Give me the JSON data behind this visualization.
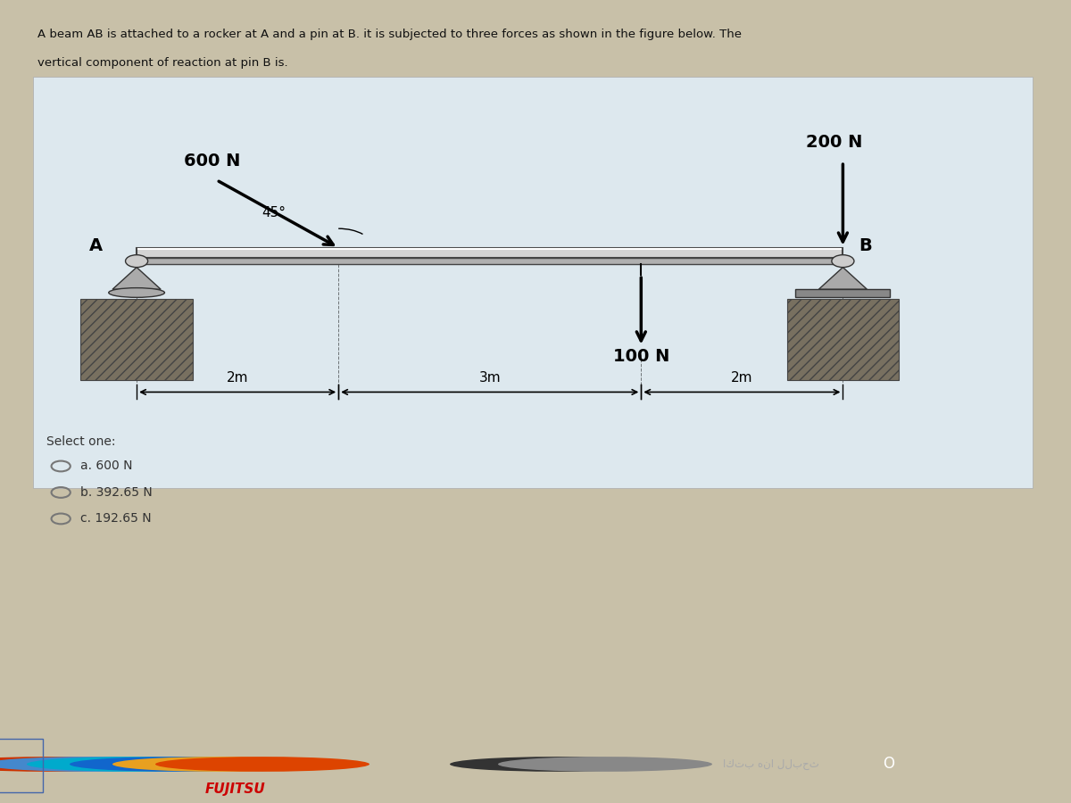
{
  "bg_color": "#c8c0a8",
  "panel_color": "#e8e4dc",
  "panel_inner_color": "#dde8ee",
  "title_line1": "A beam AB is attached to a rocker at A and a pin at B. it is subjected to three forces as shown in the figure below. The",
  "title_line2": "vertical component of reaction at pin B is.",
  "force_600_label": "600 N",
  "force_200_label": "200 N",
  "force_100_label": "100 N",
  "angle_label": "45°",
  "label_A": "A",
  "label_B": "B",
  "dim_2m_left": "2m",
  "dim_3m": "3m",
  "dim_2m_right": "2m",
  "select_one": "Select one:",
  "option_a": "a. 600 N",
  "option_b": "b. 392.65 N",
  "option_c": "c. 192.65 N",
  "taskbar_color": "#2d3a5c",
  "fujitsu_color": "#cc0000"
}
